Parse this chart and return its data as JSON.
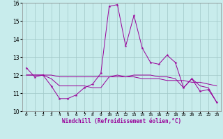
{
  "xlabel": "Windchill (Refroidissement éolien,°C)",
  "bg_color": "#c8ecec",
  "grid_color": "#a0c8c8",
  "line_color": "#990099",
  "xlim": [
    -0.5,
    23.5
  ],
  "ylim": [
    10,
    16
  ],
  "yticks": [
    10,
    11,
    12,
    13,
    14,
    15,
    16
  ],
  "xtick_labels": [
    "0",
    "1",
    "2",
    "3",
    "4",
    "5",
    "6",
    "7",
    "8",
    "9",
    "10",
    "11",
    "12",
    "13",
    "14",
    "15",
    "16",
    "17",
    "18",
    "19",
    "20",
    "21",
    "22",
    "23"
  ],
  "series1_x": [
    0,
    1,
    2,
    3,
    4,
    5,
    6,
    7,
    8,
    9,
    10,
    11,
    12,
    13,
    14,
    15,
    16,
    17,
    18,
    19,
    20,
    21,
    22,
    23
  ],
  "series1_y": [
    12.4,
    11.9,
    12.0,
    11.4,
    10.7,
    10.7,
    10.9,
    11.3,
    11.5,
    12.1,
    15.8,
    15.9,
    13.6,
    15.3,
    13.5,
    12.7,
    12.6,
    13.1,
    12.7,
    11.3,
    11.8,
    11.1,
    11.2,
    10.5
  ],
  "series2_x": [
    0,
    1,
    2,
    3,
    4,
    5,
    6,
    7,
    8,
    9,
    10,
    11,
    12,
    13,
    14,
    15,
    16,
    17,
    18,
    19,
    20,
    21,
    22,
    23
  ],
  "series2_y": [
    12.0,
    12.0,
    12.0,
    12.0,
    11.9,
    11.9,
    11.9,
    11.9,
    11.9,
    11.9,
    11.9,
    11.9,
    11.9,
    11.9,
    11.8,
    11.8,
    11.8,
    11.7,
    11.7,
    11.7,
    11.6,
    11.6,
    11.5,
    11.4
  ],
  "series3_x": [
    0,
    1,
    2,
    3,
    4,
    5,
    6,
    7,
    8,
    9,
    10,
    11,
    12,
    13,
    14,
    15,
    16,
    17,
    18,
    19,
    20,
    21,
    22,
    23
  ],
  "series3_y": [
    12.0,
    12.0,
    12.0,
    11.8,
    11.4,
    11.4,
    11.4,
    11.4,
    11.3,
    11.3,
    11.9,
    12.0,
    11.9,
    12.0,
    12.0,
    12.0,
    11.9,
    11.9,
    11.8,
    11.3,
    11.8,
    11.4,
    11.3,
    10.5
  ],
  "xlabel_fontsize": 5.5,
  "xlabel_color": "#990099",
  "ytick_fontsize": 5.5,
  "xtick_fontsize": 4.5
}
